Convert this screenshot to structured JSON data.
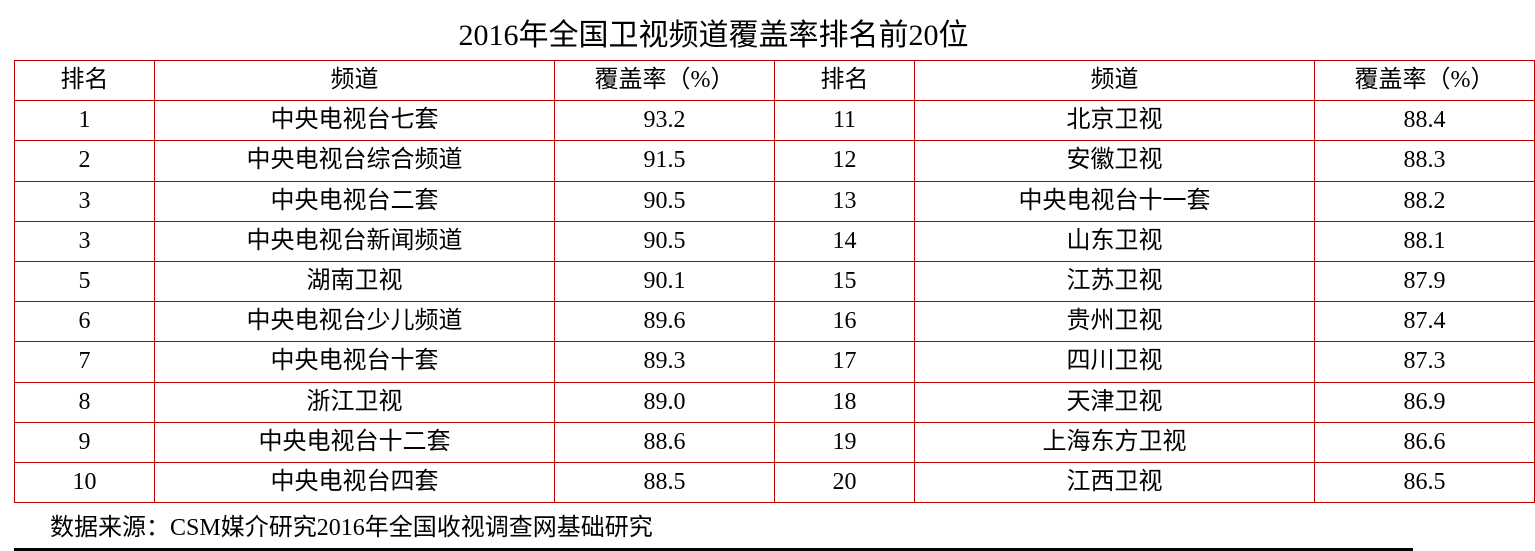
{
  "title": "2016年全国卫视频道覆盖率排名前20位",
  "columns": {
    "rank": "排名",
    "channel": "频道",
    "coverage": "覆盖率（%）"
  },
  "rows_left": [
    {
      "rank": "1",
      "channel": "中央电视台七套",
      "coverage": "93.2"
    },
    {
      "rank": "2",
      "channel": "中央电视台综合频道",
      "coverage": "91.5"
    },
    {
      "rank": "3",
      "channel": "中央电视台二套",
      "coverage": "90.5"
    },
    {
      "rank": "3",
      "channel": "中央电视台新闻频道",
      "coverage": "90.5"
    },
    {
      "rank": "5",
      "channel": "湖南卫视",
      "coverage": "90.1"
    },
    {
      "rank": "6",
      "channel": "中央电视台少儿频道",
      "coverage": "89.6"
    },
    {
      "rank": "7",
      "channel": "中央电视台十套",
      "coverage": "89.3"
    },
    {
      "rank": "8",
      "channel": "浙江卫视",
      "coverage": "89.0"
    },
    {
      "rank": "9",
      "channel": "中央电视台十二套",
      "coverage": "88.6"
    },
    {
      "rank": "10",
      "channel": "中央电视台四套",
      "coverage": "88.5"
    }
  ],
  "rows_right": [
    {
      "rank": "11",
      "channel": "北京卫视",
      "coverage": "88.4"
    },
    {
      "rank": "12",
      "channel": "安徽卫视",
      "coverage": "88.3"
    },
    {
      "rank": "13",
      "channel": "中央电视台十一套",
      "coverage": "88.2"
    },
    {
      "rank": "14",
      "channel": "山东卫视",
      "coverage": "88.1"
    },
    {
      "rank": "15",
      "channel": "江苏卫视",
      "coverage": "87.9"
    },
    {
      "rank": "16",
      "channel": "贵州卫视",
      "coverage": "87.4"
    },
    {
      "rank": "17",
      "channel": "四川卫视",
      "coverage": "87.3"
    },
    {
      "rank": "18",
      "channel": "天津卫视",
      "coverage": "86.9"
    },
    {
      "rank": "19",
      "channel": "上海东方卫视",
      "coverage": "86.6"
    },
    {
      "rank": "20",
      "channel": "江西卫视",
      "coverage": "86.5"
    }
  ],
  "footnote": "数据来源：CSM媒介研究2016年全国收视调查网基础研究",
  "style": {
    "border_color": "#c00000",
    "text_color": "#000000",
    "background_color": "#ffffff",
    "title_fontsize": 30,
    "cell_fontsize": 24,
    "footnote_fontsize": 24,
    "col_widths": {
      "rank": 140,
      "channel": 400,
      "coverage": 220
    },
    "bottom_rule_color": "#000000",
    "bottom_rule_width": 3
  }
}
